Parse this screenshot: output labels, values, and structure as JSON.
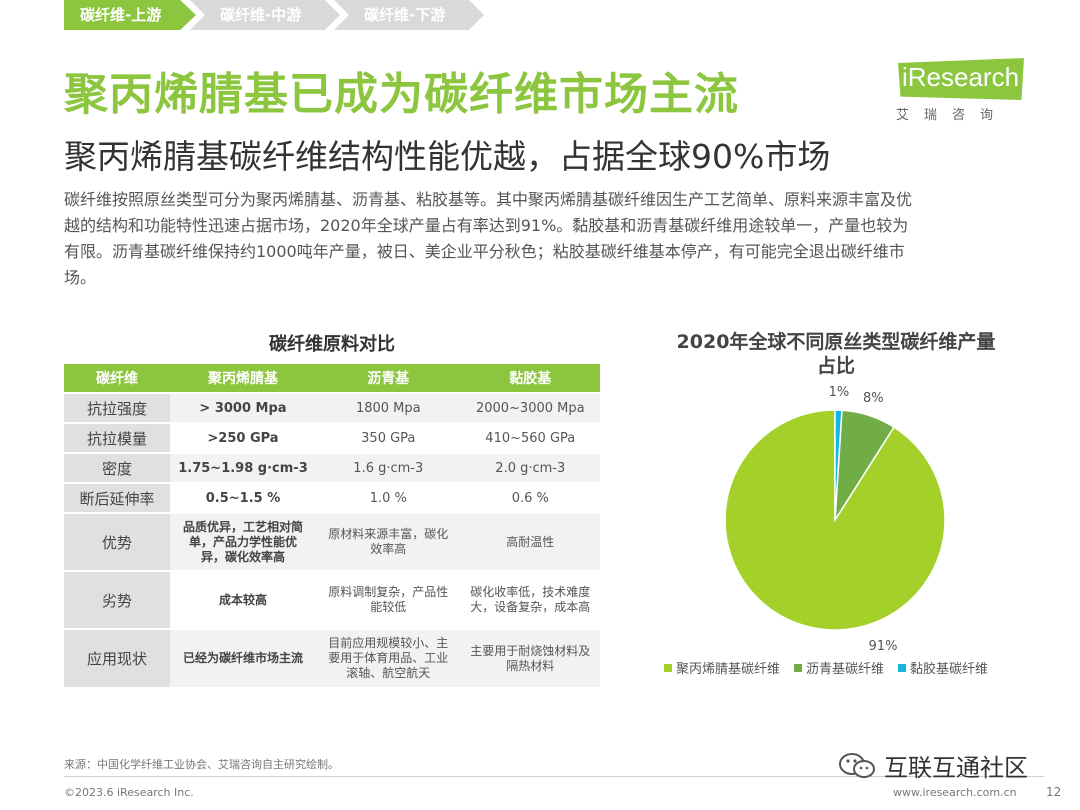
{
  "breadcrumb": [
    "碳纤维-上游",
    "碳纤维-中游",
    "碳纤维-下游"
  ],
  "title": "聚丙烯腈基已成为碳纤维市场主流",
  "subtitle": "聚丙烯腈基碳纤维结构性能优越，占据全球90%市场",
  "logo": {
    "text": "iResearch",
    "sub": "艾瑞咨询"
  },
  "intro": [
    "碳纤维按照原丝类型可分为聚丙烯腈基、沥青基、粘胶基等。其中聚丙烯腈基碳纤维因生产工艺简单、原料来源丰富及优",
    "越的结构和功能特性迅速占据市场，2020年全球产量占有率达到91%。黏胶基和沥青基碳纤维用途较单一，产量也较为",
    "有限。沥青基碳纤维保持约1000吨年产量，被日、美企业平分秋色；粘胶基碳纤维基本停产，有可能完全退出碳纤维市",
    "场。"
  ],
  "table": {
    "title": "碳纤维原料对比",
    "headers": [
      "碳纤维",
      "聚丙烯腈基",
      "沥青基",
      "黏胶基"
    ],
    "rows": [
      [
        "抗拉强度",
        "> 3000 Mpa",
        "1800 Mpa",
        "2000~3000 Mpa"
      ],
      [
        "抗拉模量",
        ">250 GPa",
        "350 GPa",
        "410~560 GPa"
      ],
      [
        "密度",
        "1.75~1.98 g·cm-3",
        "1.6 g·cm-3",
        "2.0 g·cm-3"
      ],
      [
        "断后延伸率",
        "0.5~1.5 %",
        "1.0 %",
        "0.6 %"
      ],
      [
        "优势",
        "品质优异，工艺相对简单，产品力学性能优异，碳化效率高",
        "原材料来源丰富，碳化效率高",
        "高耐温性"
      ],
      [
        "劣势",
        "成本较高",
        "原料调制复杂，产品性能较低",
        "碳化收率低，技术难度大，设备复杂，成本高"
      ],
      [
        "应用现状",
        "已经为碳纤维市场主流",
        "目前应用规模较小、主要用于体育用品、工业滚轴、航空航天",
        "主要用于耐烧蚀材料及隔热材料"
      ]
    ]
  },
  "chart_data": {
    "type": "pie",
    "title": "2020年全球不同原丝类型碳纤维产量占比",
    "categories": [
      "聚丙烯腈基碳纤维",
      "沥青基碳纤维",
      "黏胶基碳纤维"
    ],
    "values": [
      91,
      8,
      1
    ],
    "labels": [
      "91%",
      "8%",
      "1%"
    ],
    "colors": [
      "#a3d12a",
      "#70ad47",
      "#17b6e0"
    ],
    "legend": "bottom"
  },
  "footer": {
    "source": "来源：中国化学纤维工业协会、艾瑞咨询自主研究绘制。",
    "copyright": "©2023.6 iResearch Inc.",
    "watermark": "互联互通社区",
    "site": "www.iresearch.com.cn",
    "page": "12"
  }
}
